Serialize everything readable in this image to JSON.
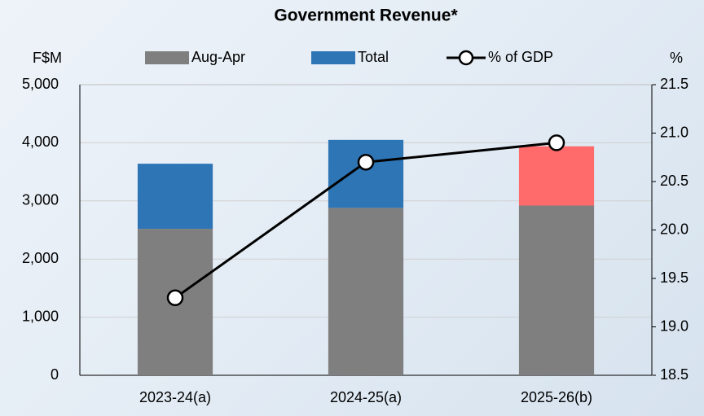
{
  "chart_data": {
    "type": "bar-line",
    "title": "Government Revenue*",
    "y_label": "F$M",
    "y2_label": "%",
    "categories": [
      "2023-24(a)",
      "2024-25(a)",
      "2025-26(b)"
    ],
    "series": [
      {
        "name": "Aug-Apr",
        "type": "bar",
        "color": "#7f7f7f",
        "values": [
          2520,
          2880,
          2920
        ]
      },
      {
        "name": "Total",
        "type": "bar",
        "color": "#2e75b6",
        "colors": [
          "#2e75b6",
          "#2e75b6",
          "#ff6b6b"
        ],
        "values": [
          1120,
          1170,
          1020
        ]
      },
      {
        "name": "% of GDP",
        "type": "line",
        "axis": "y2",
        "color": "#000000",
        "values": [
          19.3,
          20.7,
          20.9
        ]
      }
    ],
    "stacked": true,
    "ylim": [
      0,
      5000
    ],
    "yticks": [
      0,
      {
        "value": 1000,
        "label": "1,000"
      },
      {
        "value": 2000,
        "label": "2,000"
      },
      {
        "value": 3000,
        "label": "3,000"
      },
      {
        "value": 4000,
        "label": "4,000"
      },
      {
        "value": 5000,
        "label": "5,000"
      }
    ],
    "y2lim": [
      18.5,
      21.5
    ],
    "y2ticks": [
      18.5,
      {
        "value": 19,
        "label": "19.0"
      },
      19.5,
      {
        "value": 20,
        "label": "20.0"
      },
      20.5,
      {
        "value": 21,
        "label": "21.0"
      },
      21.5
    ],
    "grid": true
  }
}
